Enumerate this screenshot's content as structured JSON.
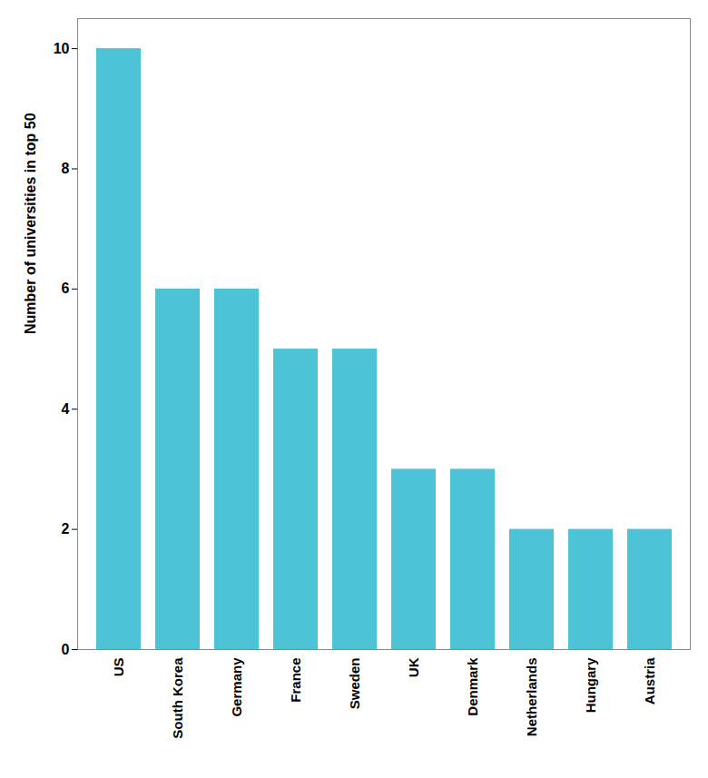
{
  "chart_data": {
    "type": "bar",
    "categories": [
      "US",
      "South Korea",
      "Germany",
      "France",
      "Sweden",
      "UK",
      "Denmark",
      "Netherlands",
      "Hungary",
      "Austria"
    ],
    "values": [
      10,
      6,
      6,
      5,
      5,
      3,
      3,
      2,
      2,
      2
    ],
    "color": "#4DC3D8",
    "ylabel": "Number of universities in top 50",
    "ylim": [
      0,
      10.5
    ],
    "yticks": [
      0,
      2,
      4,
      6,
      8,
      10
    ],
    "grid": false
  }
}
